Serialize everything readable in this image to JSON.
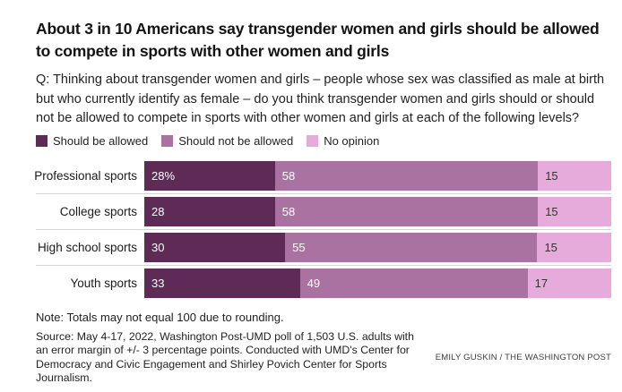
{
  "header": {
    "title": "About 3 in 10 Americans say transgender women and girls should be allowed to compete in sports with other women and girls",
    "question": "Q: Thinking about transgender women and girls – people whose sex was classified as male at birth but who currently identify as female – do you think transgender women and girls should or should not be allowed to compete in sports with other women and girls at each of the following levels?"
  },
  "chart_data": {
    "type": "bar",
    "orientation": "horizontal",
    "stacked": true,
    "legend_position": "top",
    "xlim": [
      0,
      100
    ],
    "categories": [
      "Professional sports",
      "College sports",
      "High school sports",
      "Youth sports"
    ],
    "series": [
      {
        "name": "Should be allowed",
        "color": "#5e2a56",
        "values": [
          28,
          28,
          30,
          33
        ]
      },
      {
        "name": "Should not be allowed",
        "color": "#aa72a1",
        "values": [
          58,
          58,
          55,
          49
        ]
      },
      {
        "name": "No opinion",
        "color": "#e6aadb",
        "values": [
          15,
          15,
          15,
          17
        ]
      }
    ],
    "bar_labels": [
      [
        "28%",
        "58",
        "15"
      ],
      [
        "28",
        "58",
        "15"
      ],
      [
        "30",
        "55",
        "15"
      ],
      [
        "33",
        "49",
        "17"
      ]
    ],
    "label_text_colors": [
      "#ffffff",
      "#ffffff",
      "#333333"
    ]
  },
  "footer": {
    "note": "Note: Totals may not equal 100 due to rounding.",
    "source": "Source: May 4-17, 2022, Washington Post-UMD poll of 1,503 U.S. adults with an error margin of +/- 3 percentage points. Conducted with UMD's Center for Democracy and Civic Engagement and Shirley Povich Center for Sports Journalism.",
    "credit": "EMILY GUSKIN / THE WASHINGTON POST"
  },
  "colors": {
    "divider": "#d5d5d5",
    "title_text": "#131313",
    "body_text": "#222222"
  }
}
